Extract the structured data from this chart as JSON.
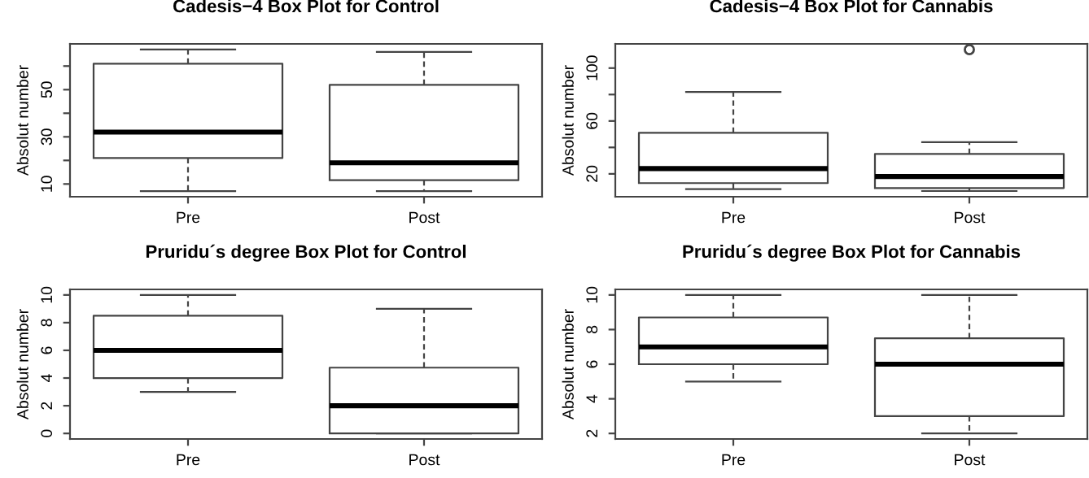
{
  "chart_data": [
    {
      "type": "box",
      "title": "Cadesis−4 Box Plot for Control",
      "ylabel": "Absolut number",
      "categories": [
        "Pre",
        "Post"
      ],
      "boxes": [
        {
          "low": 7,
          "q1": 21,
          "median": 32,
          "q3": 61,
          "high": 67
        },
        {
          "low": 7,
          "q1": 11.6,
          "median": 19,
          "q3": 52,
          "high": 66
        }
      ],
      "ylim": [
        4.6,
        69.4
      ],
      "yticks": [
        10,
        {
          "value": 20,
          "label": null
        },
        30,
        {
          "value": 40,
          "label": null
        },
        50,
        {
          "value": 60,
          "label": null
        }
      ],
      "grid": false
    },
    {
      "type": "box",
      "title": "Cadesis−4 Box Plot for Cannabis",
      "ylabel": "Absolut number",
      "categories": [
        "Pre",
        "Post"
      ],
      "boxes": [
        {
          "low": 8.5,
          "q1": 13,
          "median": 24,
          "q3": 51,
          "high": 82
        },
        {
          "low": 7,
          "q1": 9.3,
          "median": 18,
          "q3": 35,
          "high": 44,
          "outliers": [
            114
          ]
        }
      ],
      "ylim": [
        2.7,
        118.3
      ],
      "yticks": [
        20,
        {
          "value": 40,
          "label": null
        },
        60,
        {
          "value": 80,
          "label": null
        },
        100
      ],
      "grid": false
    },
    {
      "type": "box",
      "title": "Pruridu´s degree Box Plot for Control",
      "ylabel": "Absolut number",
      "categories": [
        "Pre",
        "Post"
      ],
      "boxes": [
        {
          "low": 3,
          "q1": 4,
          "median": 6,
          "q3": 8.5,
          "high": 10
        },
        {
          "low": 0,
          "q1": 0,
          "median": 2,
          "q3": 4.75,
          "high": 9
        }
      ],
      "ylim": [
        -0.4,
        10.4
      ],
      "yticks": [
        0,
        2,
        4,
        6,
        8,
        10
      ],
      "grid": false
    },
    {
      "type": "box",
      "title": "Pruridu´s degree Box Plot for Cannabis",
      "ylabel": "Absolut number",
      "categories": [
        "Pre",
        "Post"
      ],
      "boxes": [
        {
          "low": 5,
          "q1": 6,
          "median": 7,
          "q3": 8.7,
          "high": 10
        },
        {
          "low": 2,
          "q1": 3,
          "median": 6,
          "q3": 7.5,
          "high": 10
        }
      ],
      "ylim": [
        1.68,
        10.32
      ],
      "yticks": [
        2,
        4,
        6,
        8,
        10
      ],
      "grid": false
    }
  ]
}
